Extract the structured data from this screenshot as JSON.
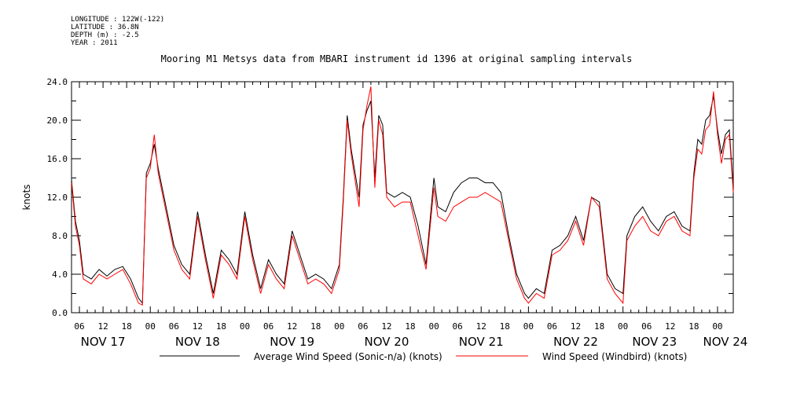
{
  "meta": {
    "longitude": "LONGITUDE : 122W(-122)",
    "latitude": "LATITUDE : 36.8N",
    "depth": "DEPTH (m) : -2.5",
    "year": "YEAR : 2011"
  },
  "chart_data": {
    "type": "line",
    "title": "Mooring M1 Metsys data from MBARI instrument id 1396 at original sampling intervals",
    "xlabel": "",
    "ylabel": "knots",
    "ylim": [
      0,
      24
    ],
    "y_ticks": [
      "0.0",
      "4.0",
      "8.0",
      "12.0",
      "16.0",
      "20.0",
      "24.0"
    ],
    "x_range_hours": [
      "2011-11-17T04:00",
      "2011-11-24T04:00"
    ],
    "hour_ticks": [
      "06",
      "12",
      "18",
      "00"
    ],
    "day_labels": [
      "NOV 17",
      "NOV 18",
      "NOV 19",
      "NOV 20",
      "NOV 21",
      "NOV 22",
      "NOV 23",
      "NOV 24"
    ],
    "grid": false,
    "legend_position": "bottom",
    "series": [
      {
        "name": "Average Wind Speed (Sonic-n/a) (knots)",
        "color": "#000000",
        "x": [
          "2011-11-17T04:00",
          "2011-11-17T05:00",
          "2011-11-17T06:00",
          "2011-11-17T07:00",
          "2011-11-17T09:00",
          "2011-11-17T11:00",
          "2011-11-17T13:00",
          "2011-11-17T15:00",
          "2011-11-17T17:00",
          "2011-11-17T19:00",
          "2011-11-17T21:00",
          "2011-11-17T22:00",
          "2011-11-17T23:00",
          "2011-11-18T00:00",
          "2011-11-18T01:00",
          "2011-11-18T02:00",
          "2011-11-18T04:00",
          "2011-11-18T06:00",
          "2011-11-18T08:00",
          "2011-11-18T10:00",
          "2011-11-18T12:00",
          "2011-11-18T14:00",
          "2011-11-18T16:00",
          "2011-11-18T18:00",
          "2011-11-18T20:00",
          "2011-11-18T22:00",
          "2011-11-19T00:00",
          "2011-11-19T02:00",
          "2011-11-19T04:00",
          "2011-11-19T06:00",
          "2011-11-19T08:00",
          "2011-11-19T10:00",
          "2011-11-19T12:00",
          "2011-11-19T14:00",
          "2011-11-19T16:00",
          "2011-11-19T18:00",
          "2011-11-19T20:00",
          "2011-11-19T22:00",
          "2011-11-20T00:00",
          "2011-11-20T01:00",
          "2011-11-20T02:00",
          "2011-11-20T03:00",
          "2011-11-20T05:00",
          "2011-11-20T06:00",
          "2011-11-20T07:00",
          "2011-11-20T08:00",
          "2011-11-20T09:00",
          "2011-11-20T10:00",
          "2011-11-20T11:00",
          "2011-11-20T12:00",
          "2011-11-20T14:00",
          "2011-11-20T16:00",
          "2011-11-20T18:00",
          "2011-11-20T20:00",
          "2011-11-20T22:00",
          "2011-11-21T00:00",
          "2011-11-21T01:00",
          "2011-11-21T03:00",
          "2011-11-21T05:00",
          "2011-11-21T07:00",
          "2011-11-21T09:00",
          "2011-11-21T11:00",
          "2011-11-21T13:00",
          "2011-11-21T15:00",
          "2011-11-21T17:00",
          "2011-11-21T19:00",
          "2011-11-21T21:00",
          "2011-11-21T23:00",
          "2011-11-22T00:00",
          "2011-11-22T02:00",
          "2011-11-22T04:00",
          "2011-11-22T06:00",
          "2011-11-22T08:00",
          "2011-11-22T10:00",
          "2011-11-22T12:00",
          "2011-11-22T14:00",
          "2011-11-22T16:00",
          "2011-11-22T18:00",
          "2011-11-22T20:00",
          "2011-11-22T22:00",
          "2011-11-23T00:00",
          "2011-11-23T01:00",
          "2011-11-23T03:00",
          "2011-11-23T05:00",
          "2011-11-23T07:00",
          "2011-11-23T09:00",
          "2011-11-23T11:00",
          "2011-11-23T13:00",
          "2011-11-23T15:00",
          "2011-11-23T17:00",
          "2011-11-23T18:00",
          "2011-11-23T19:00",
          "2011-11-23T20:00",
          "2011-11-23T21:00",
          "2011-11-23T22:00",
          "2011-11-23T23:00",
          "2011-11-24T00:00",
          "2011-11-24T01:00",
          "2011-11-24T02:00",
          "2011-11-24T03:00",
          "2011-11-24T04:00"
        ],
        "values": [
          13.8,
          9.5,
          7.5,
          4.0,
          3.5,
          4.5,
          3.8,
          4.5,
          4.8,
          3.5,
          1.5,
          1.0,
          14.5,
          15.5,
          17.5,
          15.0,
          11.0,
          7.0,
          5.0,
          4.0,
          10.5,
          6.0,
          2.0,
          6.5,
          5.5,
          4.0,
          10.5,
          6.0,
          2.5,
          5.5,
          4.0,
          3.0,
          8.5,
          6.0,
          3.5,
          4.0,
          3.5,
          2.5,
          5.0,
          12.0,
          20.5,
          17.0,
          12.0,
          19.5,
          21.0,
          22.0,
          14.0,
          20.5,
          19.5,
          12.5,
          12.0,
          12.5,
          12.0,
          9.0,
          5.0,
          14.0,
          11.0,
          10.5,
          12.5,
          13.5,
          14.0,
          14.0,
          13.5,
          13.5,
          12.5,
          8.0,
          4.0,
          2.0,
          1.5,
          2.5,
          2.0,
          6.5,
          7.0,
          8.0,
          10.0,
          7.5,
          12.0,
          11.5,
          4.0,
          2.5,
          2.0,
          8.0,
          10.0,
          11.0,
          9.5,
          8.5,
          10.0,
          10.5,
          9.0,
          8.5,
          14.5,
          18.0,
          17.5,
          20.0,
          20.5,
          22.5,
          19.0,
          16.5,
          18.5,
          19.0,
          13.0
        ]
      },
      {
        "name": "Wind Speed (Windbird) (knots)",
        "color": "#ff0000",
        "x": [
          "2011-11-17T04:00",
          "2011-11-17T05:00",
          "2011-11-17T06:00",
          "2011-11-17T07:00",
          "2011-11-17T09:00",
          "2011-11-17T11:00",
          "2011-11-17T13:00",
          "2011-11-17T15:00",
          "2011-11-17T17:00",
          "2011-11-17T19:00",
          "2011-11-17T21:00",
          "2011-11-17T22:00",
          "2011-11-17T23:00",
          "2011-11-18T00:00",
          "2011-11-18T01:00",
          "2011-11-18T02:00",
          "2011-11-18T04:00",
          "2011-11-18T06:00",
          "2011-11-18T08:00",
          "2011-11-18T10:00",
          "2011-11-18T12:00",
          "2011-11-18T14:00",
          "2011-11-18T16:00",
          "2011-11-18T18:00",
          "2011-11-18T20:00",
          "2011-11-18T22:00",
          "2011-11-19T00:00",
          "2011-11-19T02:00",
          "2011-11-19T04:00",
          "2011-11-19T06:00",
          "2011-11-19T08:00",
          "2011-11-19T10:00",
          "2011-11-19T12:00",
          "2011-11-19T14:00",
          "2011-11-19T16:00",
          "2011-11-19T18:00",
          "2011-11-19T20:00",
          "2011-11-19T22:00",
          "2011-11-20T00:00",
          "2011-11-20T01:00",
          "2011-11-20T02:00",
          "2011-11-20T03:00",
          "2011-11-20T05:00",
          "2011-11-20T06:00",
          "2011-11-20T07:00",
          "2011-11-20T08:00",
          "2011-11-20T09:00",
          "2011-11-20T10:00",
          "2011-11-20T11:00",
          "2011-11-20T12:00",
          "2011-11-20T14:00",
          "2011-11-20T16:00",
          "2011-11-20T18:00",
          "2011-11-20T20:00",
          "2011-11-20T22:00",
          "2011-11-21T00:00",
          "2011-11-21T01:00",
          "2011-11-21T03:00",
          "2011-11-21T05:00",
          "2011-11-21T07:00",
          "2011-11-21T09:00",
          "2011-11-21T11:00",
          "2011-11-21T13:00",
          "2011-11-21T15:00",
          "2011-11-21T17:00",
          "2011-11-21T19:00",
          "2011-11-21T21:00",
          "2011-11-21T23:00",
          "2011-11-22T00:00",
          "2011-11-22T02:00",
          "2011-11-22T04:00",
          "2011-11-22T06:00",
          "2011-11-22T08:00",
          "2011-11-22T10:00",
          "2011-11-22T12:00",
          "2011-11-22T14:00",
          "2011-11-22T16:00",
          "2011-11-22T18:00",
          "2011-11-22T20:00",
          "2011-11-22T22:00",
          "2011-11-23T00:00",
          "2011-11-23T01:00",
          "2011-11-23T03:00",
          "2011-11-23T05:00",
          "2011-11-23T07:00",
          "2011-11-23T09:00",
          "2011-11-23T11:00",
          "2011-11-23T13:00",
          "2011-11-23T15:00",
          "2011-11-23T17:00",
          "2011-11-23T18:00",
          "2011-11-23T19:00",
          "2011-11-23T20:00",
          "2011-11-23T21:00",
          "2011-11-23T22:00",
          "2011-11-23T23:00",
          "2011-11-24T00:00",
          "2011-11-24T01:00",
          "2011-11-24T02:00",
          "2011-11-24T03:00",
          "2011-11-24T04:00"
        ],
        "values": [
          13.5,
          9.0,
          7.0,
          3.5,
          3.0,
          4.0,
          3.5,
          4.0,
          4.5,
          3.0,
          1.0,
          0.8,
          14.0,
          15.0,
          18.5,
          14.5,
          10.5,
          6.5,
          4.5,
          3.5,
          10.0,
          5.5,
          1.5,
          6.0,
          5.0,
          3.5,
          10.0,
          5.5,
          2.0,
          5.0,
          3.5,
          2.5,
          8.0,
          5.5,
          3.0,
          3.5,
          3.0,
          2.0,
          4.5,
          11.5,
          20.0,
          16.5,
          11.0,
          19.0,
          21.5,
          23.5,
          13.0,
          20.0,
          18.5,
          12.0,
          11.0,
          11.5,
          11.5,
          8.0,
          4.5,
          13.0,
          10.0,
          9.5,
          11.0,
          11.5,
          12.0,
          12.0,
          12.5,
          12.0,
          11.5,
          7.5,
          3.5,
          1.5,
          1.0,
          2.0,
          1.5,
          6.0,
          6.5,
          7.5,
          9.5,
          7.0,
          12.0,
          11.0,
          3.5,
          2.0,
          1.0,
          7.5,
          9.0,
          10.0,
          8.5,
          8.0,
          9.5,
          10.0,
          8.5,
          8.0,
          14.0,
          17.0,
          16.5,
          19.0,
          19.5,
          23.0,
          18.5,
          15.5,
          18.0,
          18.5,
          12.5
        ]
      }
    ]
  }
}
